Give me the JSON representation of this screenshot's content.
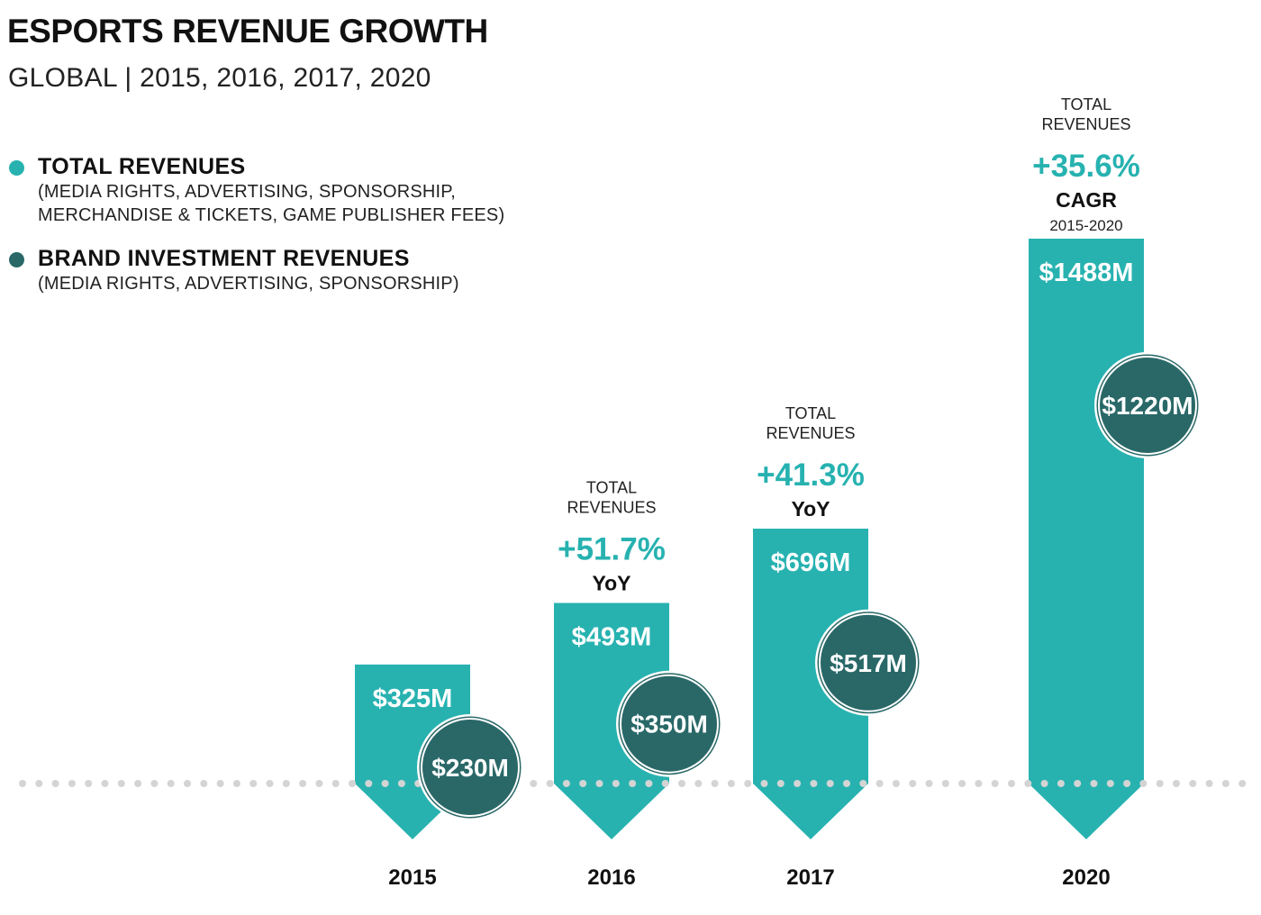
{
  "title": "ESPORTS REVENUE GROWTH",
  "subtitle": "GLOBAL | 2015, 2016, 2017, 2020",
  "colors": {
    "total": "#27b2b0",
    "brand": "#2a6868",
    "baseline_dots": "#d4d4d4"
  },
  "legend": [
    {
      "label": "TOTAL REVENUES",
      "detail": "(MEDIA RIGHTS, ADVERTISING, SPONSORSHIP,\nMERCHANDISE & TICKETS, GAME PUBLISHER FEES)",
      "color": "#27b2b0"
    },
    {
      "label": "BRAND INVESTMENT REVENUES",
      "detail": "(MEDIA RIGHTS, ADVERTISING, SPONSORSHIP)",
      "color": "#2a6868"
    }
  ],
  "chart_data": {
    "type": "bar",
    "categories": [
      "2015",
      "2016",
      "2017",
      "2020"
    ],
    "series": [
      {
        "name": "TOTAL REVENUES",
        "values": [
          325,
          493,
          696,
          1488
        ],
        "labels": [
          "$325M",
          "$493M",
          "$696M",
          "$1488M"
        ]
      },
      {
        "name": "BRAND INVESTMENT REVENUES",
        "values": [
          230,
          350,
          517,
          1220
        ],
        "labels": [
          "$230M",
          "$350M",
          "$517M",
          "$1220M"
        ]
      }
    ],
    "unit": "$M",
    "annotations": [
      {
        "category": "2016",
        "header": "TOTAL\nREVENUES",
        "growth": "+51.7%",
        "measure": "YoY",
        "period": ""
      },
      {
        "category": "2017",
        "header": "TOTAL\nREVENUES",
        "growth": "+41.3%",
        "measure": "YoY",
        "period": ""
      },
      {
        "category": "2020",
        "header": "TOTAL\nREVENUES",
        "growth": "+35.6%",
        "measure": "CAGR",
        "period": "2015-2020"
      }
    ],
    "grid": false,
    "legend_position": "top-left"
  }
}
